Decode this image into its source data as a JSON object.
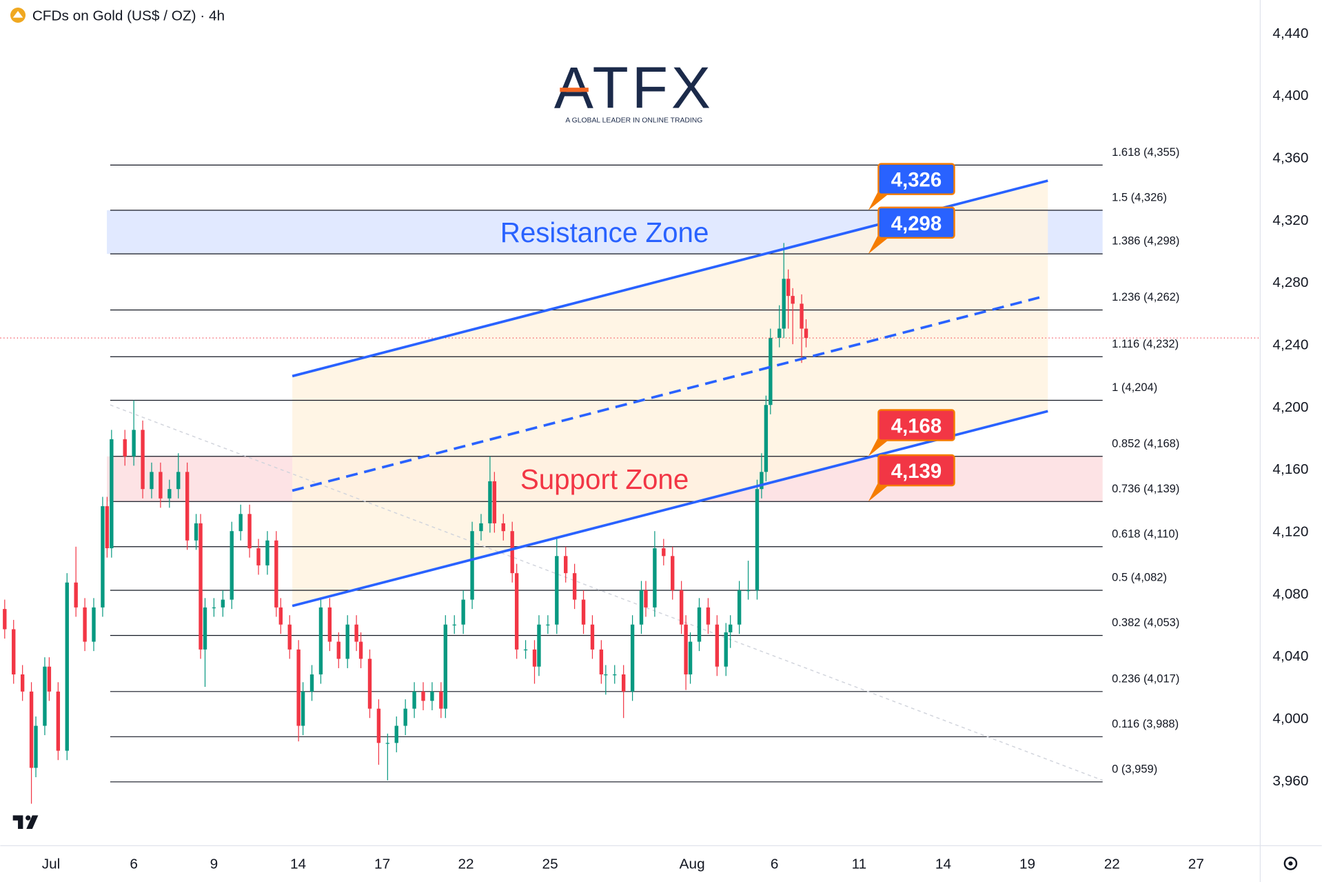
{
  "chart_data": {
    "type": "candlestick",
    "title": "CFDs on Gold (US$ / OZ) · 4h",
    "logo": {
      "name": "ATFX",
      "tagline": "A GLOBAL LEADER IN ONLINE TRADING"
    },
    "up_color": "#089981",
    "down_color": "#f23645",
    "xlim": [
      -1,
      282
    ],
    "ylim": [
      3918,
      4461
    ],
    "yticks": [
      {
        "value": 3960,
        "label": "3,960"
      },
      {
        "value": 4000,
        "label": "4,000"
      },
      {
        "value": 4040,
        "label": "4,040"
      },
      {
        "value": 4080,
        "label": "4,080"
      },
      {
        "value": 4120,
        "label": "4,120"
      },
      {
        "value": 4160,
        "label": "4,160"
      },
      {
        "value": 4200,
        "label": "4,200"
      },
      {
        "value": 4240,
        "label": "4,240"
      },
      {
        "value": 4280,
        "label": "4,280"
      },
      {
        "value": 4320,
        "label": "4,320"
      },
      {
        "value": 4360,
        "label": "4,360"
      },
      {
        "value": 4400,
        "label": "4,400"
      },
      {
        "value": 4440,
        "label": "4,440"
      }
    ],
    "xticks": [
      {
        "value": 10.4,
        "label": "Jul"
      },
      {
        "value": 29,
        "label": "6"
      },
      {
        "value": 47,
        "label": "9"
      },
      {
        "value": 65.9,
        "label": "14"
      },
      {
        "value": 84.8,
        "label": "17"
      },
      {
        "value": 103.6,
        "label": "22"
      },
      {
        "value": 122.5,
        "label": "25"
      },
      {
        "value": 154.4,
        "label": "Aug"
      },
      {
        "value": 172.9,
        "label": "6"
      },
      {
        "value": 191.9,
        "label": "11"
      },
      {
        "value": 210.8,
        "label": "14"
      },
      {
        "value": 229.7,
        "label": "19"
      },
      {
        "value": 248.7,
        "label": "22"
      },
      {
        "value": 267.6,
        "label": "27"
      }
    ],
    "x": [
      0,
      2,
      4,
      6,
      7,
      9,
      10,
      12,
      14,
      16,
      18,
      20,
      22,
      23,
      24,
      27,
      29,
      31,
      33,
      35,
      37,
      39,
      41,
      43,
      44,
      45,
      47,
      49,
      51,
      53,
      55,
      57,
      59,
      61,
      62,
      64,
      66,
      67,
      69,
      71,
      73,
      75,
      77,
      79,
      80,
      82,
      84,
      86,
      88,
      90,
      92,
      94,
      96,
      98,
      99,
      101,
      103,
      105,
      107,
      109,
      110,
      112,
      114,
      115,
      117,
      119,
      120,
      122,
      124,
      126,
      128,
      130,
      132,
      134,
      135,
      137,
      139,
      141,
      143,
      144,
      146,
      148,
      150,
      152,
      153,
      154,
      156,
      158,
      160,
      162,
      163,
      165,
      167,
      169,
      170,
      171,
      172,
      174,
      175,
      176,
      177,
      179,
      180
    ],
    "values": [
      [
        4070,
        4076,
        4051,
        4057
      ],
      [
        4057,
        4063,
        4022,
        4028
      ],
      [
        4028,
        4034,
        4011,
        4017
      ],
      [
        4017,
        4023,
        3945,
        3968
      ],
      [
        3968,
        4001,
        3962,
        3995
      ],
      [
        3995,
        4039,
        3989,
        4033
      ],
      [
        4033,
        4039,
        4011,
        4017
      ],
      [
        4017,
        4023,
        3973,
        3979
      ],
      [
        3979,
        4093,
        3973,
        4087
      ],
      [
        4087,
        4110,
        4065,
        4071
      ],
      [
        4071,
        4077,
        4043,
        4049
      ],
      [
        4049,
        4077,
        4043,
        4071
      ],
      [
        4071,
        4142,
        4065,
        4136
      ],
      [
        4136,
        4142,
        4103,
        4109
      ],
      [
        4109,
        4185,
        4103,
        4179
      ],
      [
        4179,
        4185,
        4162,
        4168
      ],
      [
        4168,
        4204,
        4162,
        4185
      ],
      [
        4185,
        4191,
        4141,
        4147
      ],
      [
        4147,
        4164,
        4141,
        4158
      ],
      [
        4158,
        4164,
        4135,
        4141
      ],
      [
        4141,
        4153,
        4135,
        4147
      ],
      [
        4147,
        4170,
        4141,
        4158
      ],
      [
        4158,
        4164,
        4108,
        4114
      ],
      [
        4114,
        4131,
        4108,
        4125
      ],
      [
        4125,
        4131,
        4038,
        4044
      ],
      [
        4044,
        4077,
        4020,
        4071
      ],
      [
        4071,
        4077,
        4065,
        4071
      ],
      [
        4071,
        4082,
        4065,
        4076
      ],
      [
        4076,
        4126,
        4070,
        4120
      ],
      [
        4120,
        4137,
        4114,
        4131
      ],
      [
        4131,
        4137,
        4103,
        4109
      ],
      [
        4109,
        4115,
        4092,
        4098
      ],
      [
        4098,
        4120,
        4092,
        4114
      ],
      [
        4114,
        4120,
        4065,
        4071
      ],
      [
        4071,
        4077,
        4054,
        4060
      ],
      [
        4060,
        4066,
        4038,
        4044
      ],
      [
        4044,
        4050,
        3985,
        3995
      ],
      [
        3995,
        4023,
        3989,
        4017
      ],
      [
        4017,
        4034,
        4011,
        4028
      ],
      [
        4028,
        4077,
        4022,
        4071
      ],
      [
        4071,
        4077,
        4043,
        4049
      ],
      [
        4049,
        4055,
        4032,
        4038
      ],
      [
        4038,
        4066,
        4032,
        4060
      ],
      [
        4060,
        4066,
        4043,
        4049
      ],
      [
        4049,
        4055,
        4032,
        4038
      ],
      [
        4038,
        4044,
        4000,
        4006
      ],
      [
        4006,
        4012,
        3970,
        3984
      ],
      [
        3984,
        3990,
        3960,
        3984
      ],
      [
        3984,
        4001,
        3978,
        3995
      ],
      [
        3995,
        4012,
        3989,
        4006
      ],
      [
        4006,
        4023,
        4000,
        4017
      ],
      [
        4017,
        4023,
        4005,
        4011
      ],
      [
        4011,
        4023,
        4005,
        4017
      ],
      [
        4017,
        4023,
        4000,
        4006
      ],
      [
        4006,
        4066,
        4000,
        4060
      ],
      [
        4060,
        4066,
        4054,
        4060
      ],
      [
        4060,
        4082,
        4054,
        4076
      ],
      [
        4076,
        4126,
        4070,
        4120
      ],
      [
        4120,
        4131,
        4114,
        4125
      ],
      [
        4125,
        4168,
        4119,
        4152
      ],
      [
        4152,
        4158,
        4119,
        4125
      ],
      [
        4125,
        4131,
        4114,
        4120
      ],
      [
        4120,
        4126,
        4087,
        4093
      ],
      [
        4093,
        4099,
        4038,
        4044
      ],
      [
        4044,
        4050,
        4038,
        4044
      ],
      [
        4044,
        4050,
        4022,
        4033
      ],
      [
        4033,
        4066,
        4027,
        4060
      ],
      [
        4060,
        4066,
        4054,
        4060
      ],
      [
        4060,
        4116,
        4054,
        4104
      ],
      [
        4104,
        4110,
        4087,
        4093
      ],
      [
        4093,
        4099,
        4070,
        4076
      ],
      [
        4076,
        4082,
        4054,
        4060
      ],
      [
        4060,
        4066,
        4038,
        4044
      ],
      [
        4044,
        4050,
        4022,
        4028
      ],
      [
        4028,
        4034,
        4015,
        4028
      ],
      [
        4028,
        4034,
        4022,
        4028
      ],
      [
        4028,
        4034,
        4000,
        4017
      ],
      [
        4017,
        4066,
        4011,
        4060
      ],
      [
        4060,
        4088,
        4054,
        4082
      ],
      [
        4082,
        4088,
        4065,
        4071
      ],
      [
        4071,
        4120,
        4065,
        4109
      ],
      [
        4109,
        4115,
        4098,
        4104
      ],
      [
        4104,
        4110,
        4076,
        4082
      ],
      [
        4082,
        4088,
        4054,
        4060
      ],
      [
        4060,
        4066,
        4018,
        4028
      ],
      [
        4028,
        4055,
        4022,
        4049
      ],
      [
        4049,
        4077,
        4043,
        4071
      ],
      [
        4071,
        4077,
        4054,
        4060
      ],
      [
        4060,
        4066,
        4027,
        4033
      ],
      [
        4033,
        4061,
        4027,
        4055
      ],
      [
        4055,
        4066,
        4045,
        4060
      ],
      [
        4060,
        4088,
        4054,
        4082
      ],
      [
        4082,
        4101,
        4076,
        4082
      ],
      [
        4082,
        4153,
        4076,
        4147
      ],
      [
        4147,
        4170,
        4141,
        4158
      ],
      [
        4158,
        4207,
        4152,
        4201
      ],
      [
        4201,
        4250,
        4195,
        4244
      ],
      [
        4244,
        4265,
        4238,
        4250
      ],
      [
        4250,
        4305,
        4244,
        4282
      ],
      [
        4282,
        4288,
        4250,
        4271
      ],
      [
        4271,
        4276,
        4240,
        4266
      ],
      [
        4266,
        4272,
        4228,
        4250
      ],
      [
        4250,
        4256,
        4238,
        4244
      ]
    ],
    "levels_span": [
      23.7,
      246.6
    ],
    "fib_levels": [
      {
        "value": 4355,
        "label": "1.618 (4,355)"
      },
      {
        "value": 4326,
        "label": "1.5 (4,326)"
      },
      {
        "value": 4298,
        "label": "1.386 (4,298)"
      },
      {
        "value": 4262,
        "label": "1.236 (4,262)"
      },
      {
        "value": 4232,
        "label": "1.116 (4,232)"
      },
      {
        "value": 4204,
        "label": "1 (4,204)"
      },
      {
        "value": 4168,
        "label": "0.852 (4,168)"
      },
      {
        "value": 4139,
        "label": "0.736 (4,139)"
      },
      {
        "value": 4110,
        "label": "0.618 (4,110)"
      },
      {
        "value": 4082,
        "label": "0.5 (4,082)"
      },
      {
        "value": 4053,
        "label": "0.382 (4,053)"
      },
      {
        "value": 4017,
        "label": "0.236 (4,017)"
      },
      {
        "value": 3988,
        "label": "0.116 (3,988)"
      },
      {
        "value": 3959,
        "label": "0 (3,959)"
      }
    ],
    "zones": [
      {
        "low": 4298,
        "high": 4326,
        "label": "Resistance Zone",
        "color": "#2962ff"
      },
      {
        "low": 4139,
        "high": 4168,
        "label": "Support Zone",
        "color": "#f23645"
      }
    ],
    "callouts": [
      {
        "value": 4326,
        "label": "4,326",
        "color": "#2962ff"
      },
      {
        "value": 4298,
        "label": "4,298",
        "color": "#2962ff"
      },
      {
        "value": 4168,
        "label": "4,168",
        "color": "#f23645"
      },
      {
        "value": 4139,
        "label": "4,139",
        "color": "#f23645"
      }
    ],
    "channel": {
      "color": "#2962ff",
      "fill": "#fff3e0",
      "upper": {
        "x": [
          64.6,
          234.3
        ],
        "y": [
          4219.5,
          4345
        ]
      },
      "lower": {
        "x": [
          64.6,
          234.3
        ],
        "y": [
          4072,
          4197
        ]
      },
      "middle": {
        "x": [
          64.6,
          232.4
        ],
        "y": [
          4146,
          4270
        ]
      }
    },
    "trend_line": {
      "x": [
        23.7,
        246.6
      ],
      "y": [
        4201,
        3960
      ]
    }
  }
}
